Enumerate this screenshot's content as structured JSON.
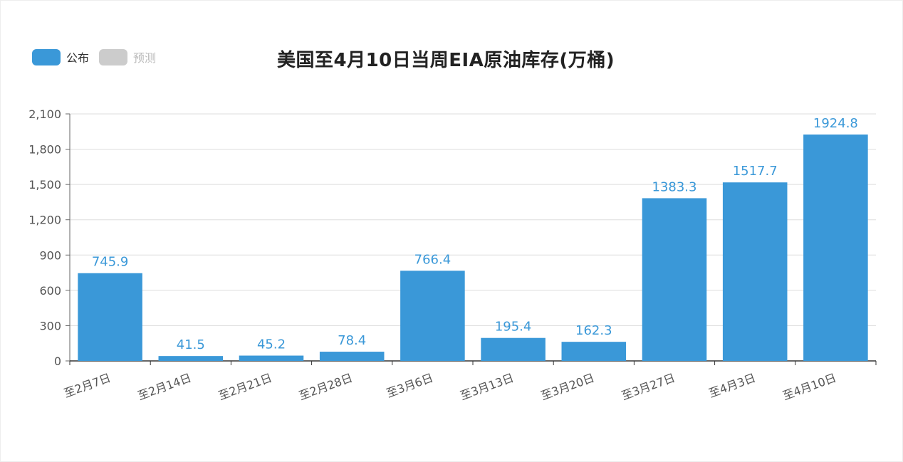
{
  "chart_data": {
    "type": "bar",
    "title": "美国至4月10日当周EIA原油库存(万桶)",
    "categories": [
      "至2月7日",
      "至2月14日",
      "至2月21日",
      "至2月28日",
      "至3月6日",
      "至3月13日",
      "至3月20日",
      "至3月27日",
      "至4月3日",
      "至4月10日"
    ],
    "series": [
      {
        "name": "公布",
        "color": "#3a98d8",
        "values": [
          745.9,
          41.5,
          45.2,
          78.4,
          766.4,
          195.4,
          162.3,
          1383.3,
          1517.7,
          1924.8
        ],
        "value_labels": [
          "745.9",
          "41.5",
          "45.2",
          "78.4",
          "766.4",
          "195.4",
          "162.3",
          "1383.3",
          "1517.7",
          "1924.8"
        ]
      }
    ],
    "ylim": [
      0,
      2100
    ],
    "yticks": [
      0,
      300,
      600,
      900,
      1200,
      1500,
      1800,
      2100
    ],
    "ytick_labels": [
      "0",
      "300",
      "600",
      "900",
      "1,200",
      "1,500",
      "1,800",
      "2,100"
    ],
    "xlabel": "",
    "ylabel": "",
    "grid": true,
    "legend_position": "top-left"
  },
  "legend": {
    "items": [
      {
        "label": "公布",
        "color": "#3a98d8",
        "active": true
      },
      {
        "label": "预测",
        "color": "#cccccc",
        "active": false
      }
    ]
  }
}
